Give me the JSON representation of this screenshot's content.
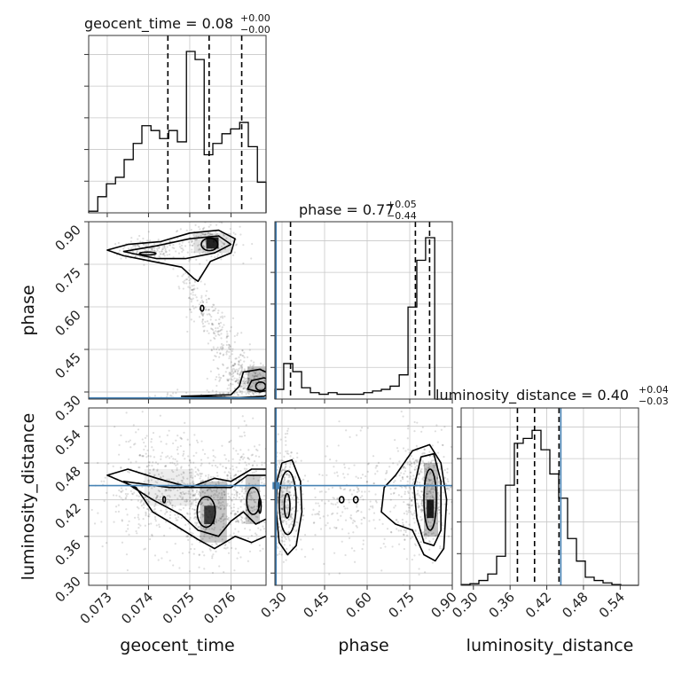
{
  "chart_data": {
    "type": "corner",
    "parameters": [
      "geocent_time",
      "phase",
      "luminosity_distance"
    ],
    "ranges": {
      "geocent_time": [
        0.07255,
        0.07685
      ],
      "phase": [
        0.275,
        0.9
      ],
      "luminosity_distance": [
        0.28,
        0.57
      ]
    },
    "truths": {
      "geocent_time": null,
      "phase": 0.279,
      "luminosity_distance": 0.443
    },
    "ticks": {
      "geocent_time": [
        "0.073",
        "0.074",
        "0.075",
        "0.076"
      ],
      "phase": [
        "0.30",
        "0.45",
        "0.60",
        "0.75",
        "0.90"
      ],
      "luminosity_distance": [
        "0.30",
        "0.36",
        "0.42",
        "0.48",
        "0.54"
      ]
    },
    "tick_values": {
      "geocent_time": [
        0.073,
        0.074,
        0.075,
        0.076
      ],
      "phase": [
        0.3,
        0.45,
        0.6,
        0.75,
        0.9
      ],
      "luminosity_distance": [
        0.3,
        0.36,
        0.42,
        0.48,
        0.54
      ]
    },
    "titles": {
      "geocent_time": {
        "text": "geocent_time = 0.08",
        "plus": "+0.00",
        "minus": "−0.00"
      },
      "phase": {
        "text": "phase = 0.77",
        "plus": "+0.05",
        "minus": "−0.44"
      },
      "luminosity_distance": {
        "text": "luminosity_distance = 0.40",
        "plus": "+0.04",
        "minus": "−0.03"
      }
    },
    "quantiles": {
      "geocent_time": [
        0.07447,
        0.07547,
        0.07626
      ],
      "phase": [
        0.33,
        0.77,
        0.82
      ],
      "luminosity_distance": [
        0.372,
        0.4,
        0.44
      ]
    },
    "histograms": {
      "geocent_time": {
        "edges": [
          0.07255,
          0.07277,
          0.07298,
          0.0732,
          0.07341,
          0.07363,
          0.07384,
          0.07406,
          0.07427,
          0.07449,
          0.0747,
          0.07492,
          0.07513,
          0.07535,
          0.07556,
          0.07578,
          0.07599,
          0.07621,
          0.07642,
          0.07664,
          0.07685
        ],
        "counts": [
          0.01,
          0.1,
          0.18,
          0.22,
          0.33,
          0.43,
          0.54,
          0.51,
          0.46,
          0.51,
          0.44,
          1.0,
          0.95,
          0.36,
          0.43,
          0.49,
          0.52,
          0.56,
          0.41,
          0.19
        ]
      },
      "phase": {
        "edges": [
          0.275,
          0.306,
          0.338,
          0.369,
          0.4,
          0.431,
          0.463,
          0.494,
          0.525,
          0.556,
          0.588,
          0.619,
          0.65,
          0.681,
          0.713,
          0.744,
          0.775,
          0.806,
          0.838,
          0.869,
          0.9
        ],
        "counts": [
          0.06,
          0.22,
          0.17,
          0.07,
          0.04,
          0.03,
          0.04,
          0.03,
          0.03,
          0.03,
          0.04,
          0.05,
          0.06,
          0.08,
          0.15,
          0.57,
          0.86,
          1.0,
          0.0,
          0.0
        ]
      },
      "luminosity_distance": {
        "edges": [
          0.28,
          0.2945,
          0.309,
          0.3235,
          0.338,
          0.3525,
          0.367,
          0.3815,
          0.396,
          0.4105,
          0.425,
          0.4395,
          0.454,
          0.4685,
          0.483,
          0.4975,
          0.512,
          0.5265,
          0.541,
          0.5555,
          0.57
        ],
        "counts": [
          0.005,
          0.01,
          0.03,
          0.07,
          0.18,
          0.62,
          0.88,
          0.91,
          0.96,
          0.84,
          0.69,
          0.54,
          0.29,
          0.15,
          0.05,
          0.03,
          0.015,
          0.005,
          0.0,
          0.0
        ]
      }
    },
    "grid": true,
    "contour_color": "#000000",
    "truth_color": "#4682b4"
  }
}
